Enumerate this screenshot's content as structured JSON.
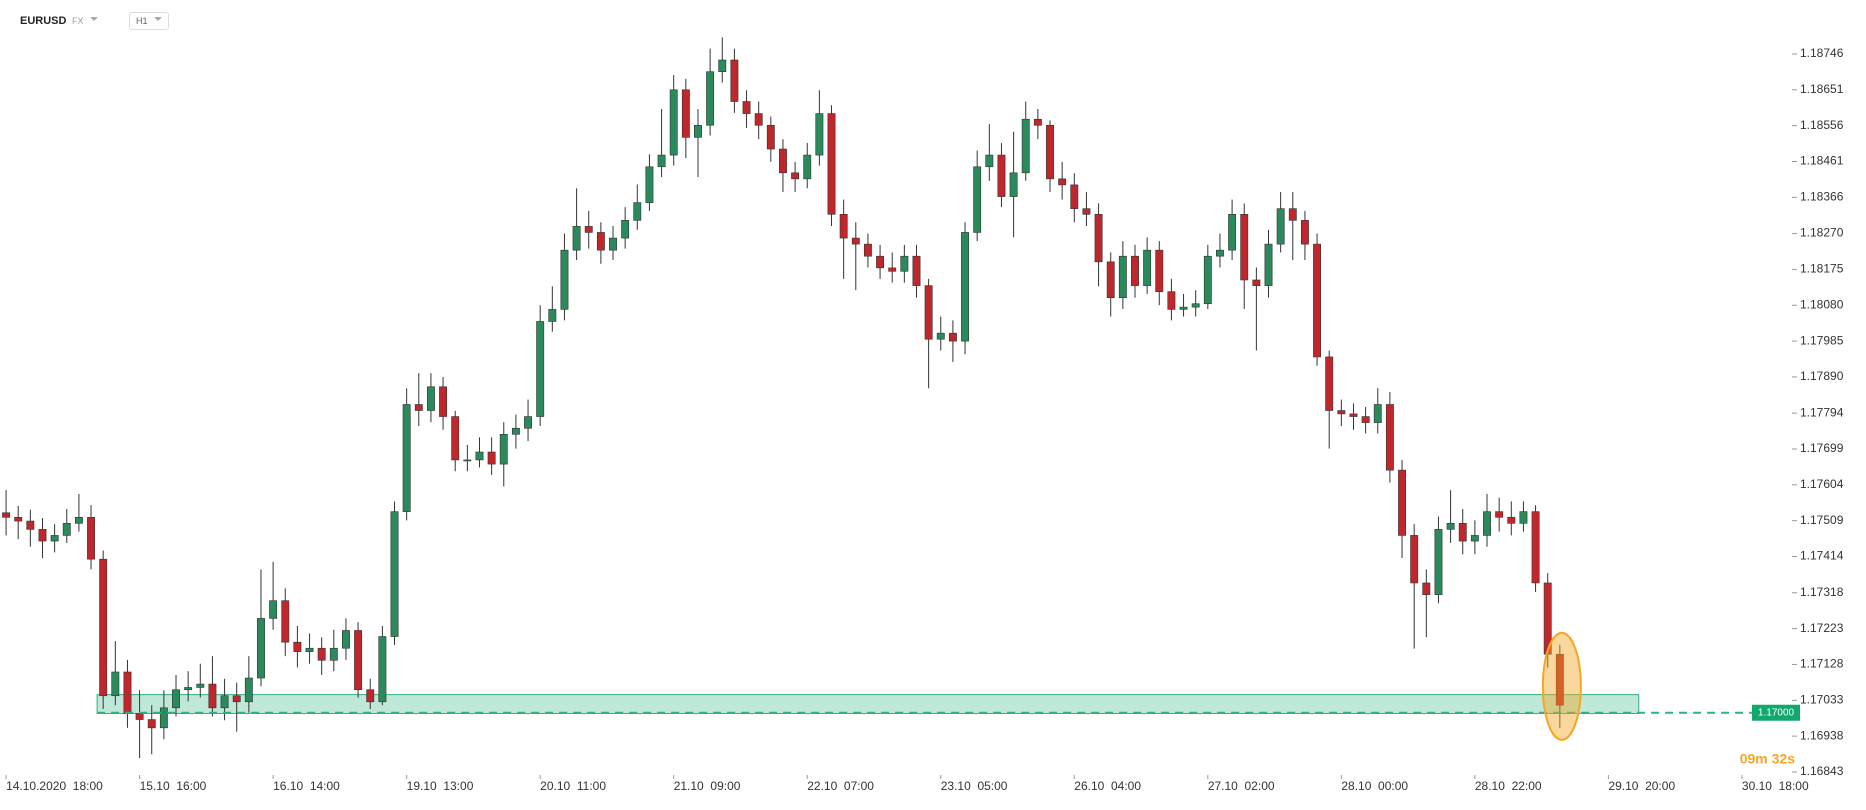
{
  "header": {
    "symbol": "EURUSD",
    "market": "FX",
    "interval": "H1"
  },
  "chart_data": {
    "type": "candlestick",
    "up_color": "#2a8a5c",
    "down_color": "#c0272d",
    "wick_color": "#333333",
    "open": [
      1.1753,
      1.17518,
      1.17508,
      1.17486,
      1.17455,
      1.1747,
      1.17502,
      1.17518,
      1.17407,
      1.17045,
      1.17108,
      1.16998,
      1.16982,
      1.1696,
      1.17013,
      1.17061,
      1.17067,
      1.17076,
      1.17013,
      1.17045,
      1.17029,
      1.17092,
      1.1725,
      1.17297,
      1.17187,
      1.17162,
      1.17171,
      1.17139,
      1.17171,
      1.17218,
      1.17061,
      1.17029,
      1.17202,
      1.17533,
      1.17817,
      1.17801,
      1.17864,
      1.17785,
      1.1767,
      1.1767,
      1.17691,
      1.17659,
      1.17738,
      1.17754,
      1.17785,
      1.18037,
      1.18069,
      1.18226,
      1.18289,
      1.18273,
      1.18226,
      1.18258,
      1.18305,
      1.18352,
      1.18447,
      1.18478,
      1.18651,
      1.18525,
      1.18557,
      1.18699,
      1.1873,
      1.1862,
      1.18588,
      1.18557,
      1.18494,
      1.18431,
      1.18415,
      1.18478,
      1.18588,
      1.18321,
      1.18258,
      1.18242,
      1.1821,
      1.18179,
      1.1817,
      1.1821,
      1.18132,
      1.1799,
      1.18006,
      1.17985,
      1.18273,
      1.18447,
      1.18478,
      1.18368,
      1.18431,
      1.18573,
      1.18557,
      1.18415,
      1.18399,
      1.18336,
      1.18321,
      1.18195,
      1.181,
      1.1821,
      1.18132,
      1.18226,
      1.18116,
      1.18069,
      1.18075,
      1.18084,
      1.1821,
      1.18226,
      1.18321,
      1.18147,
      1.18132,
      1.18242,
      1.18336,
      1.18305,
      1.18242,
      1.17943,
      1.17801,
      1.17792,
      1.17785,
      1.17769,
      1.17817,
      1.17643,
      1.1747,
      1.17344,
      1.17313,
      1.17486,
      1.17502,
      1.17455,
      1.1747,
      1.17533,
      1.17518,
      1.17502,
      1.17533,
      1.17344,
      1.17155
    ],
    "high": [
      1.1759,
      1.17548,
      1.17538,
      1.17516,
      1.175,
      1.1754,
      1.1758,
      1.1755,
      1.1743,
      1.1719,
      1.1714,
      1.1706,
      1.1702,
      1.1706,
      1.171,
      1.1711,
      1.1713,
      1.1715,
      1.1709,
      1.1708,
      1.1715,
      1.1738,
      1.174,
      1.1733,
      1.1723,
      1.1721,
      1.172,
      1.1722,
      1.1725,
      1.1724,
      1.1709,
      1.1723,
      1.1756,
      1.1786,
      1.179,
      1.179,
      1.1789,
      1.178,
      1.1771,
      1.1773,
      1.1773,
      1.1777,
      1.1779,
      1.1783,
      1.1808,
      1.1813,
      1.1827,
      1.1839,
      1.1833,
      1.183,
      1.1829,
      1.1834,
      1.184,
      1.1848,
      1.186,
      1.1869,
      1.1868,
      1.186,
      1.1876,
      1.1879,
      1.1876,
      1.1865,
      1.1862,
      1.1858,
      1.1852,
      1.1846,
      1.1851,
      1.1865,
      1.1861,
      1.1836,
      1.183,
      1.1827,
      1.1824,
      1.1822,
      1.1824,
      1.1824,
      1.1815,
      1.1805,
      1.1804,
      1.183,
      1.1849,
      1.1856,
      1.1851,
      1.1854,
      1.1862,
      1.186,
      1.1857,
      1.1846,
      1.1843,
      1.1838,
      1.1835,
      1.1822,
      1.1825,
      1.1824,
      1.1826,
      1.1825,
      1.1815,
      1.1811,
      1.1812,
      1.1824,
      1.1827,
      1.1836,
      1.1835,
      1.1818,
      1.1828,
      1.1838,
      1.1838,
      1.1833,
      1.1827,
      1.1796,
      1.1783,
      1.1782,
      1.1781,
      1.1786,
      1.1785,
      1.1767,
      1.175,
      1.1738,
      1.1752,
      1.1759,
      1.1754,
      1.1751,
      1.1758,
      1.1757,
      1.1756,
      1.1756,
      1.1755,
      1.1737,
      1.1718
    ],
    "low": [
      1.1747,
      1.1746,
      1.1744,
      1.1741,
      1.17425,
      1.1745,
      1.1748,
      1.1738,
      1.1701,
      1.1702,
      1.1696,
      1.1688,
      1.1689,
      1.1693,
      1.1699,
      1.1703,
      1.1704,
      1.1699,
      1.1698,
      1.1695,
      1.17,
      1.1707,
      1.1722,
      1.1715,
      1.1712,
      1.1713,
      1.171,
      1.1711,
      1.1714,
      1.1704,
      1.1701,
      1.1702,
      1.1718,
      1.1751,
      1.1776,
      1.1777,
      1.1775,
      1.1764,
      1.1764,
      1.1765,
      1.1763,
      1.176,
      1.177,
      1.1772,
      1.1776,
      1.1801,
      1.1804,
      1.182,
      1.1823,
      1.1819,
      1.182,
      1.1823,
      1.1828,
      1.1833,
      1.1842,
      1.1845,
      1.1847,
      1.1842,
      1.1853,
      1.1867,
      1.1859,
      1.1855,
      1.1852,
      1.1846,
      1.1838,
      1.1838,
      1.1839,
      1.1845,
      1.1829,
      1.1815,
      1.1812,
      1.1818,
      1.1815,
      1.1814,
      1.1814,
      1.181,
      1.1786,
      1.1796,
      1.1793,
      1.1795,
      1.1825,
      1.1841,
      1.1834,
      1.1826,
      1.1841,
      1.1852,
      1.1838,
      1.1836,
      1.183,
      1.1829,
      1.1813,
      1.1805,
      1.1807,
      1.181,
      1.1811,
      1.1808,
      1.1804,
      1.1805,
      1.1805,
      1.1807,
      1.1818,
      1.182,
      1.1807,
      1.1796,
      1.181,
      1.1822,
      1.182,
      1.182,
      1.1792,
      1.177,
      1.1776,
      1.1775,
      1.1774,
      1.1774,
      1.1761,
      1.1741,
      1.1717,
      1.172,
      1.1729,
      1.1745,
      1.1742,
      1.1742,
      1.1744,
      1.1748,
      1.1747,
      1.1748,
      1.1732,
      1.1712,
      1.1696
    ],
    "close": [
      1.17518,
      1.17508,
      1.17486,
      1.17455,
      1.1747,
      1.17502,
      1.17518,
      1.17407,
      1.17045,
      1.17108,
      1.16998,
      1.16982,
      1.1696,
      1.17013,
      1.17061,
      1.17067,
      1.17076,
      1.17013,
      1.17045,
      1.17029,
      1.17092,
      1.1725,
      1.17297,
      1.17187,
      1.17162,
      1.17171,
      1.17139,
      1.17171,
      1.17218,
      1.17061,
      1.17029,
      1.17202,
      1.17533,
      1.17817,
      1.17801,
      1.17864,
      1.17785,
      1.1767,
      1.1767,
      1.17691,
      1.17659,
      1.17738,
      1.17754,
      1.17785,
      1.18037,
      1.18069,
      1.18226,
      1.18289,
      1.18273,
      1.18226,
      1.18258,
      1.18305,
      1.18352,
      1.18447,
      1.18478,
      1.18651,
      1.18525,
      1.18557,
      1.18699,
      1.1873,
      1.1862,
      1.18588,
      1.18557,
      1.18494,
      1.18431,
      1.18415,
      1.18478,
      1.18588,
      1.18321,
      1.18258,
      1.18242,
      1.1821,
      1.18179,
      1.1817,
      1.1821,
      1.18132,
      1.1799,
      1.18006,
      1.17985,
      1.18273,
      1.18447,
      1.18478,
      1.18368,
      1.18431,
      1.18573,
      1.18557,
      1.18415,
      1.18399,
      1.18336,
      1.18321,
      1.18195,
      1.181,
      1.1821,
      1.18132,
      1.18226,
      1.18116,
      1.18069,
      1.18075,
      1.18084,
      1.1821,
      1.18226,
      1.18321,
      1.18147,
      1.18132,
      1.18242,
      1.18336,
      1.18305,
      1.18242,
      1.17943,
      1.17801,
      1.17792,
      1.17785,
      1.17769,
      1.17817,
      1.17643,
      1.1747,
      1.17344,
      1.17313,
      1.17486,
      1.17502,
      1.17455,
      1.1747,
      1.17533,
      1.17518,
      1.17502,
      1.17533,
      1.17344,
      1.17155,
      1.1702
    ],
    "xlim": [
      -0.5,
      143.5
    ],
    "xticks": [
      {
        "value": 0,
        "label": "14.10.2020  18:00"
      },
      {
        "value": 11,
        "label": "15.10  16:00"
      },
      {
        "value": 22,
        "label": "16.10  14:00"
      },
      {
        "value": 33,
        "label": "19.10  13:00"
      },
      {
        "value": 44,
        "label": "20.10  11:00"
      },
      {
        "value": 55,
        "label": "21.10  09:00"
      },
      {
        "value": 66,
        "label": "22.10  07:00"
      },
      {
        "value": 77,
        "label": "23.10  05:00"
      },
      {
        "value": 88,
        "label": "26.10  04:00"
      },
      {
        "value": 99,
        "label": "27.10  02:00"
      },
      {
        "value": 110,
        "label": "28.10  00:00"
      },
      {
        "value": 121,
        "label": "28.10  22:00"
      },
      {
        "value": 132,
        "label": "29.10  20:00"
      },
      {
        "value": 143,
        "label": "30.10  18:00"
      }
    ],
    "ylim": [
      1.16835,
      1.18889
    ],
    "yticks": [
      1.18746,
      1.18651,
      1.18556,
      1.18461,
      1.18366,
      {
        "value": 1.1827,
        "label": "1.18270"
      },
      1.18175,
      {
        "value": 1.1808,
        "label": "1.18080"
      },
      1.17985,
      {
        "value": 1.1789,
        "label": "1.17890"
      },
      1.17794,
      1.17699,
      1.17604,
      1.17509,
      1.17414,
      1.17318,
      1.17223,
      1.17128,
      1.17033,
      1.16938,
      1.16843
    ],
    "zone": {
      "x": [
        7.5,
        134.5
      ],
      "y": [
        1.16998,
        1.17048
      ],
      "color": "#2db37e"
    },
    "level": {
      "value": 1.17,
      "label": "1.17000",
      "color": "#11a86f"
    },
    "countdown": "09m 32s",
    "highlight_color": "#f5a623"
  }
}
